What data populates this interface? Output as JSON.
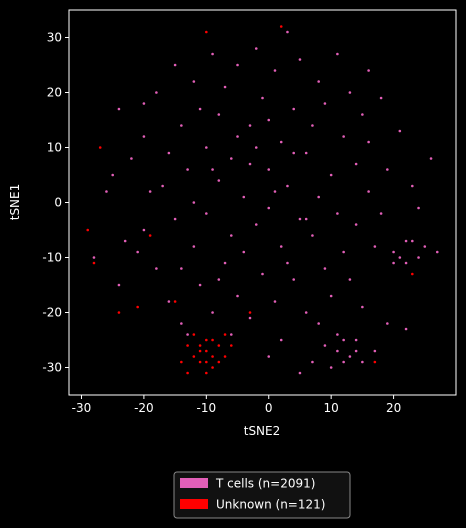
{
  "chart_data": {
    "type": "scatter",
    "xlabel": "tSNE2",
    "ylabel": "tSNE1",
    "xlim": [
      -32,
      30
    ],
    "ylim": [
      -35,
      35
    ],
    "xticks": [
      -30,
      -20,
      -10,
      0,
      10,
      20
    ],
    "yticks": [
      -30,
      -20,
      -10,
      0,
      10,
      20,
      30
    ],
    "grid": false,
    "legend": "bottom",
    "series": [
      {
        "name": "T cells (n=2091)",
        "color": "#e25fb8",
        "x": [
          -28,
          -26,
          -24,
          -24,
          -22,
          -20,
          -20,
          -18,
          -18,
          -17,
          -16,
          -15,
          -15,
          -14,
          -14,
          -13,
          -12,
          -12,
          -11,
          -10,
          -10,
          -9,
          -9,
          -8,
          -8,
          -7,
          -7,
          -6,
          -6,
          -5,
          -5,
          -4,
          -4,
          -3,
          -3,
          -2,
          -2,
          -1,
          -1,
          0,
          0,
          1,
          1,
          2,
          2,
          3,
          3,
          4,
          4,
          5,
          5,
          6,
          6,
          7,
          7,
          8,
          8,
          9,
          9,
          10,
          10,
          11,
          11,
          12,
          12,
          13,
          13,
          14,
          14,
          15,
          15,
          16,
          16,
          17,
          18,
          18,
          19,
          20,
          21,
          22,
          23,
          24,
          25,
          26,
          -21,
          -19,
          -13,
          -11,
          -6,
          -3,
          2,
          4,
          8,
          11,
          14,
          17,
          19,
          22,
          -16,
          -8,
          0,
          7,
          12,
          9,
          11,
          13,
          10,
          14,
          12,
          15,
          21,
          23,
          22,
          20,
          -25,
          -23,
          -2,
          3,
          1,
          -5,
          6,
          -9,
          5,
          27,
          -20,
          16,
          -12,
          0,
          -14,
          24
        ],
        "values": [
          -10,
          2,
          17,
          -15,
          8,
          -5,
          12,
          -12,
          20,
          3,
          -18,
          25,
          -3,
          14,
          -22,
          6,
          -8,
          22,
          -15,
          10,
          -2,
          27,
          -20,
          4,
          16,
          -11,
          21,
          -6,
          8,
          -17,
          25,
          1,
          -9,
          14,
          -21,
          28,
          -4,
          19,
          -13,
          6,
          -1,
          24,
          -18,
          11,
          -8,
          31,
          3,
          -14,
          17,
          -3,
          26,
          9,
          -20,
          14,
          -6,
          22,
          1,
          -12,
          18,
          5,
          -17,
          27,
          -2,
          12,
          -9,
          20,
          -14,
          7,
          -4,
          16,
          -19,
          2,
          11,
          -8,
          19,
          -2,
          6,
          -11,
          13,
          -7,
          3,
          -10,
          -8,
          8,
          -9,
          2,
          -24,
          17,
          -24,
          7,
          -25,
          9,
          -22,
          -27,
          -25,
          -27,
          -22,
          -23,
          9,
          -14,
          15,
          -29,
          -29,
          -26,
          -24,
          -28,
          -30,
          -27,
          -25,
          -29,
          -10,
          -7,
          -11,
          -9,
          5,
          -7,
          10,
          -11,
          2,
          12,
          -3,
          6,
          -31,
          -9,
          18,
          24,
          0,
          -28,
          -12,
          -1
        ]
      },
      {
        "name": "Unknown (n=121)",
        "color": "#ff0000",
        "x": [
          -10,
          -11,
          -9,
          -12,
          -8,
          -10,
          -11,
          -9,
          -13,
          -7,
          -10,
          -12,
          -8,
          -14,
          -6,
          -11,
          -9,
          -10,
          -13,
          -7,
          -28,
          -27,
          -21,
          -15,
          -3,
          2,
          -10,
          23,
          17,
          -19,
          -29,
          -24
        ],
        "values": [
          -27,
          -26,
          -28,
          -28,
          -26,
          -25,
          -29,
          -30,
          -26,
          -28,
          -31,
          -24,
          -29,
          -29,
          -26,
          -27,
          -25,
          -29,
          -31,
          -24,
          -11,
          10,
          -19,
          -18,
          -20,
          32,
          31,
          -13,
          -29,
          -6,
          -5,
          -20
        ]
      }
    ]
  }
}
